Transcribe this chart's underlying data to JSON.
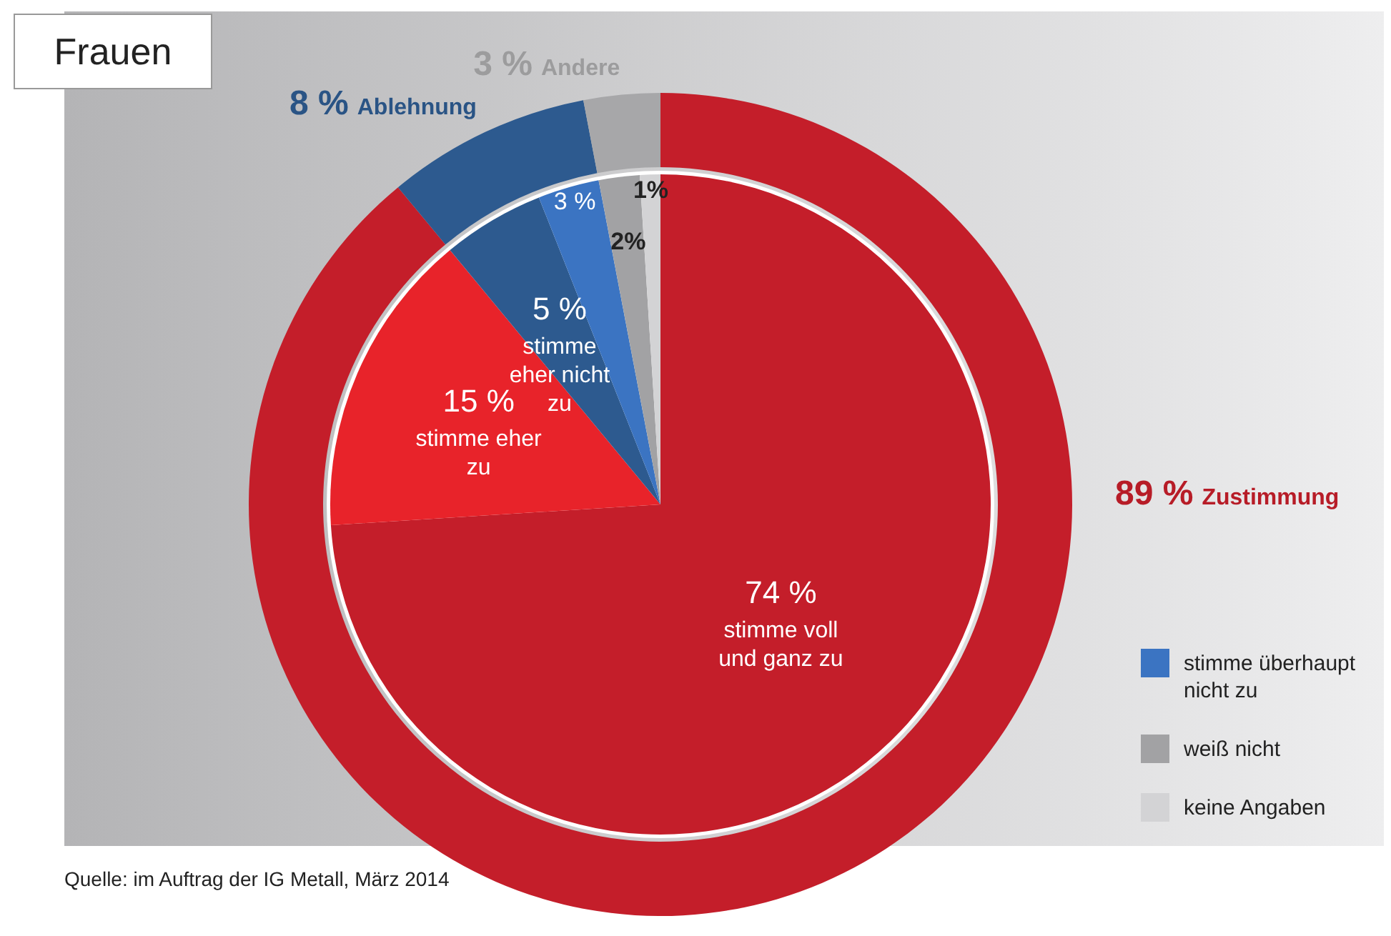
{
  "chart_data": [
    {
      "type": "donut",
      "title": "Frauen",
      "categories": [
        "Zustimmung",
        "Ablehnung",
        "Andere"
      ],
      "values": [
        89,
        8,
        3
      ],
      "colors": [
        "#c41e2a",
        "#2d5a8f",
        "#a7a7a9"
      ],
      "value_labels": [
        "89 %",
        "8 %",
        "3 %"
      ],
      "annotations": [
        "Quelle: im Auftrag der IG Metall, März 2014"
      ]
    },
    {
      "type": "pie",
      "categories": [
        "stimme voll und ganz zu",
        "stimme eher zu",
        "stimme eher nicht zu",
        "stimme überhaupt nicht zu",
        "weiß nicht",
        "keine Angaben"
      ],
      "values": [
        74,
        15,
        5,
        3,
        2,
        1
      ],
      "colors": [
        "#c41e2a",
        "#e8232a",
        "#2d5a8f",
        "#3b74c2",
        "#a2a2a4",
        "#d3d3d5"
      ],
      "value_labels": [
        "74 %",
        "15 %",
        "5 %",
        "3 %",
        "2%",
        "1%"
      ],
      "legend": "bottom right"
    }
  ]
}
